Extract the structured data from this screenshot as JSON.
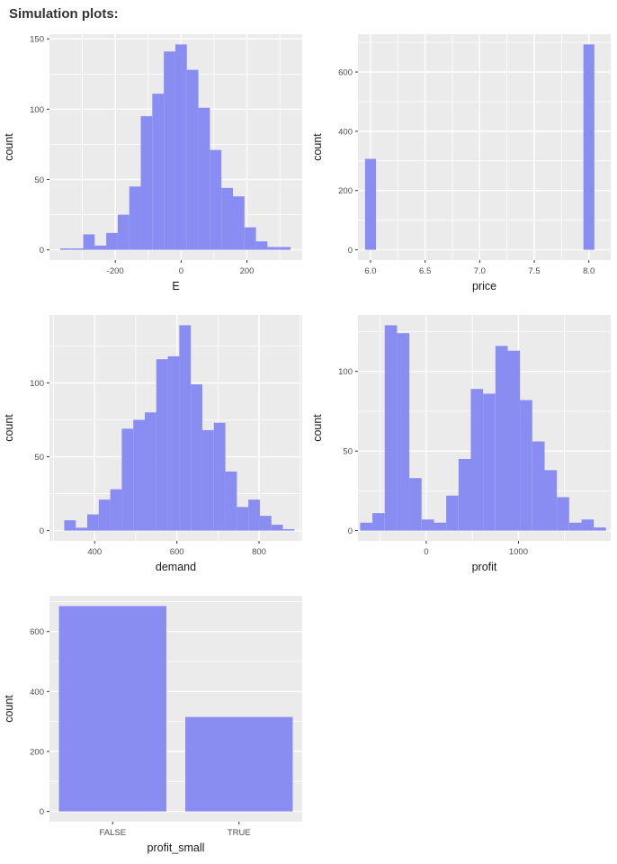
{
  "title": "Simulation plots:",
  "style": {
    "bar_fill": "#898CF0",
    "panel_bg": "#EBEBEB",
    "grid_color": "#FFFFFF",
    "tick_color": "#333333",
    "tick_label_color": "#4D4D4D",
    "axis_title_color": "#1A1A1A",
    "page_bg": "#FFFFFF",
    "title_color": "#333333"
  },
  "chart_data": [
    {
      "id": "E",
      "type": "histogram",
      "title": "",
      "xlabel": "E",
      "ylabel": "count",
      "legend": "none",
      "grid": true,
      "bin_width": 35,
      "bin_centers": [
        -350,
        -315,
        -280,
        -245,
        -210,
        -175,
        -140,
        -105,
        -70,
        -35,
        0,
        35,
        70,
        105,
        140,
        175,
        210,
        245,
        280,
        315
      ],
      "counts": [
        1,
        1,
        11,
        3,
        12,
        25,
        45,
        95,
        111,
        141,
        146,
        128,
        101,
        71,
        44,
        38,
        16,
        6,
        2,
        2
      ],
      "x_domain": [
        -400,
        368
      ],
      "y_max": 146,
      "x_major": [
        -200,
        0,
        200
      ],
      "x_major_labels": [
        "-200",
        "0",
        "200"
      ],
      "x_minor": [
        -300,
        -100,
        100,
        300
      ],
      "y_major": [
        0,
        50,
        100,
        150
      ],
      "y_minor": [
        25,
        75,
        125
      ]
    },
    {
      "id": "price",
      "type": "histogram",
      "title": "",
      "xlabel": "price",
      "ylabel": "count",
      "legend": "none",
      "grid": true,
      "bin_width": 0.1,
      "bin_centers": [
        6.0,
        8.0
      ],
      "counts": [
        307,
        693
      ],
      "x_domain": [
        5.885,
        8.2
      ],
      "y_max": 693,
      "x_major": [
        6.0,
        6.5,
        7.0,
        7.5,
        8.0
      ],
      "x_major_labels": [
        "6.0",
        "6.5",
        "7.0",
        "7.5",
        "8.0"
      ],
      "x_minor": [
        6.25,
        6.75,
        7.25,
        7.75
      ],
      "y_major": [
        0,
        200,
        400,
        600
      ],
      "y_minor": [
        100,
        300,
        500,
        700
      ]
    },
    {
      "id": "demand",
      "type": "histogram",
      "title": "",
      "xlabel": "demand",
      "ylabel": "count",
      "legend": "none",
      "grid": true,
      "bin_width": 28,
      "bin_centers": [
        340,
        368,
        396,
        424,
        452,
        480,
        508,
        536,
        564,
        592,
        620,
        648,
        676,
        704,
        732,
        760,
        788,
        816,
        844,
        872
      ],
      "counts": [
        7,
        2,
        11,
        21,
        28,
        69,
        75,
        80,
        116,
        118,
        139,
        99,
        68,
        73,
        40,
        16,
        21,
        10,
        4,
        1
      ],
      "x_domain": [
        290,
        905
      ],
      "y_max": 139,
      "x_major": [
        400,
        600,
        800
      ],
      "x_major_labels": [
        "400",
        "600",
        "800"
      ],
      "x_minor": [
        300,
        500,
        700,
        900
      ],
      "y_major": [
        0,
        50,
        100
      ],
      "y_minor": [
        25,
        75,
        125
      ]
    },
    {
      "id": "profit",
      "type": "histogram",
      "title": "",
      "xlabel": "profit",
      "ylabel": "count",
      "legend": "none",
      "grid": true,
      "bin_width": 133,
      "bin_centers": [
        -650,
        -517,
        -383,
        -250,
        -117,
        17,
        150,
        283,
        417,
        550,
        683,
        817,
        950,
        1083,
        1217,
        1350,
        1483,
        1617,
        1750,
        1883
      ],
      "counts": [
        5,
        11,
        129,
        124,
        33,
        7,
        5,
        22,
        45,
        89,
        86,
        116,
        113,
        82,
        56,
        38,
        21,
        5,
        7,
        2
      ],
      "x_domain": [
        -740,
        2000
      ],
      "y_max": 129,
      "x_major": [
        0,
        1000
      ],
      "x_major_labels": [
        "0",
        "1000"
      ],
      "x_minor": [
        -500,
        500,
        1500
      ],
      "y_major": [
        0,
        50,
        100
      ],
      "y_minor": [
        25,
        75,
        125
      ]
    },
    {
      "id": "profit_small",
      "type": "bar",
      "title": "",
      "xlabel": "profit_small",
      "ylabel": "count",
      "legend": "none",
      "grid": true,
      "categories": [
        "FALSE",
        "TRUE"
      ],
      "values": [
        685,
        315
      ],
      "bar_rel_width": 0.85,
      "y_max": 685,
      "y_major": [
        0,
        200,
        400,
        600
      ],
      "y_minor": [
        100,
        300,
        500,
        700
      ]
    }
  ]
}
